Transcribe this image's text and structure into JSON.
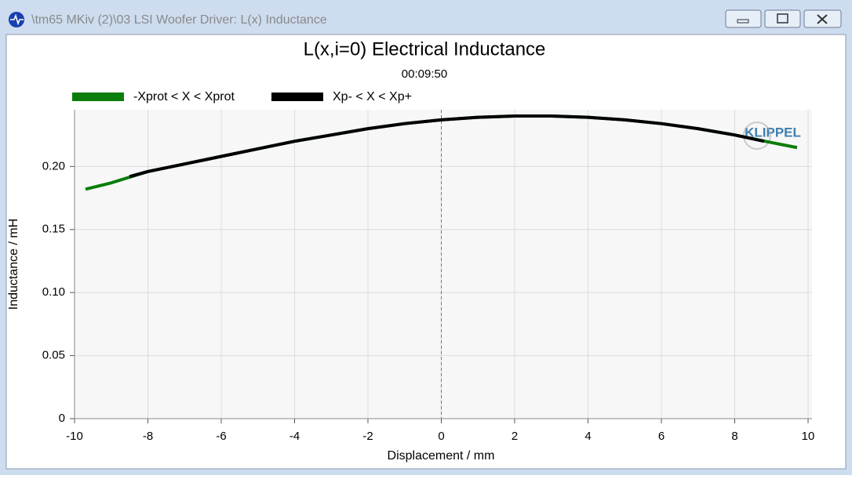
{
  "window": {
    "title": "\\tm65 MKiv (2)\\03 LSI Woofer Driver: L(x) Inductance"
  },
  "chart_data": {
    "type": "line",
    "title": "L(x,i=0) Electrical Inductance",
    "subtitle": "00:09:50",
    "logo": "KLIPPEL",
    "xlabel": "Displacement / mm",
    "ylabel": "Inductance / mH",
    "xlim": [
      -10,
      10
    ],
    "ylim": [
      0,
      0.245
    ],
    "xticks": [
      -10,
      -8,
      -6,
      -4,
      -2,
      0,
      2,
      4,
      6,
      8,
      10
    ],
    "yticks": [
      0,
      0.05,
      {
        "value": 0.1,
        "label": "0.10"
      },
      0.15,
      {
        "value": 0.2,
        "label": "0.20"
      }
    ],
    "grid": true,
    "series": [
      {
        "name": "-Xprot < X < Xprot",
        "color": "#0a7d0a",
        "x": [
          -9.7,
          -9,
          -8,
          -7,
          -6,
          -5,
          -4,
          -3,
          -2,
          -1,
          0,
          1,
          2,
          3,
          4,
          5,
          6,
          7,
          8,
          9,
          9.7
        ],
        "values": [
          0.182,
          0.187,
          0.196,
          0.202,
          0.208,
          0.214,
          0.22,
          0.225,
          0.23,
          0.234,
          0.237,
          0.239,
          0.24,
          0.24,
          0.239,
          0.237,
          0.234,
          0.23,
          0.225,
          0.219,
          0.215
        ]
      },
      {
        "name": "Xp- < X < Xp+",
        "color": "#000000",
        "x": [
          -8.5,
          -8,
          -7,
          -6,
          -5,
          -4,
          -3,
          -2,
          -1,
          0,
          1,
          2,
          3,
          4,
          5,
          6,
          7,
          8,
          8.8
        ],
        "values": [
          0.192,
          0.196,
          0.202,
          0.208,
          0.214,
          0.22,
          0.225,
          0.23,
          0.234,
          0.237,
          0.239,
          0.24,
          0.24,
          0.239,
          0.237,
          0.234,
          0.23,
          0.225,
          0.22
        ]
      }
    ]
  }
}
